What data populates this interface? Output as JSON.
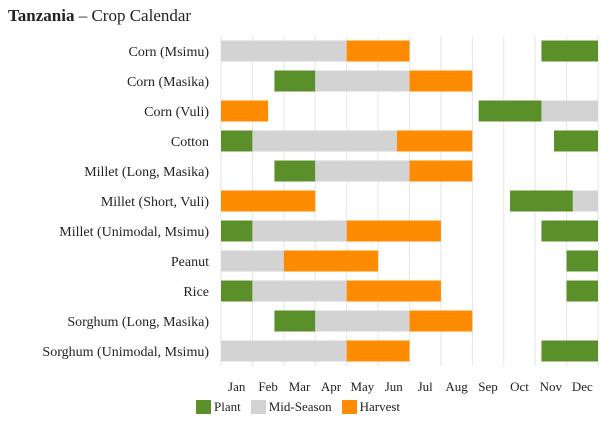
{
  "title": {
    "country": "Tanzania",
    "dash": "–",
    "subtitle": "Crop Calendar"
  },
  "colors": {
    "plant": "#5a8f29",
    "mid": "#d3d3d3",
    "harvest": "#ff8c00",
    "grid": "#e6e6e6"
  },
  "legend": [
    {
      "key": "plant",
      "label": "Plant"
    },
    {
      "key": "mid",
      "label": "Mid-Season"
    },
    {
      "key": "harvest",
      "label": "Harvest"
    }
  ],
  "chart_data": {
    "type": "bar",
    "title": "Tanzania – Crop Calendar",
    "x_unit": "months (Jan start = 0, Dec end = 12)",
    "months": [
      "Jan",
      "Feb",
      "Mar",
      "Apr",
      "May",
      "Jun",
      "Jul",
      "Aug",
      "Sep",
      "Oct",
      "Nov",
      "Dec"
    ],
    "xlim": [
      0,
      12
    ],
    "grid": true,
    "legend_position": "bottom-left",
    "crops": [
      {
        "name": "Corn (Msimu)",
        "segments": [
          {
            "type": "mid",
            "start": 0,
            "end": 4
          },
          {
            "type": "harvest",
            "start": 4,
            "end": 6
          },
          {
            "type": "plant",
            "start": 10.2,
            "end": 12
          }
        ]
      },
      {
        "name": "Corn (Masika)",
        "segments": [
          {
            "type": "plant",
            "start": 1.7,
            "end": 3
          },
          {
            "type": "mid",
            "start": 3,
            "end": 6
          },
          {
            "type": "harvest",
            "start": 6,
            "end": 8
          }
        ]
      },
      {
        "name": "Corn (Vuli)",
        "segments": [
          {
            "type": "harvest",
            "start": 0,
            "end": 1.5
          },
          {
            "type": "plant",
            "start": 8.2,
            "end": 10.2
          },
          {
            "type": "mid",
            "start": 10.2,
            "end": 12
          }
        ]
      },
      {
        "name": "Cotton",
        "segments": [
          {
            "type": "plant",
            "start": 0,
            "end": 1
          },
          {
            "type": "mid",
            "start": 1,
            "end": 5.6
          },
          {
            "type": "harvest",
            "start": 5.6,
            "end": 8
          },
          {
            "type": "plant",
            "start": 10.6,
            "end": 12
          }
        ]
      },
      {
        "name": "Millet (Long, Masika)",
        "segments": [
          {
            "type": "plant",
            "start": 1.7,
            "end": 3
          },
          {
            "type": "mid",
            "start": 3,
            "end": 6
          },
          {
            "type": "harvest",
            "start": 6,
            "end": 8
          }
        ]
      },
      {
        "name": "Millet (Short, Vuli)",
        "segments": [
          {
            "type": "harvest",
            "start": 0,
            "end": 3
          },
          {
            "type": "plant",
            "start": 9.2,
            "end": 11.2
          },
          {
            "type": "mid",
            "start": 11.2,
            "end": 12
          }
        ]
      },
      {
        "name": "Millet (Unimodal, Msimu)",
        "segments": [
          {
            "type": "plant",
            "start": 0,
            "end": 1
          },
          {
            "type": "mid",
            "start": 1,
            "end": 4
          },
          {
            "type": "harvest",
            "start": 4,
            "end": 7
          },
          {
            "type": "plant",
            "start": 10.2,
            "end": 12
          }
        ]
      },
      {
        "name": "Peanut",
        "segments": [
          {
            "type": "mid",
            "start": 0,
            "end": 2
          },
          {
            "type": "harvest",
            "start": 2,
            "end": 5
          },
          {
            "type": "plant",
            "start": 11,
            "end": 12
          }
        ]
      },
      {
        "name": "Rice",
        "segments": [
          {
            "type": "plant",
            "start": 0,
            "end": 1
          },
          {
            "type": "mid",
            "start": 1,
            "end": 4
          },
          {
            "type": "harvest",
            "start": 4,
            "end": 7
          },
          {
            "type": "plant",
            "start": 11,
            "end": 12
          }
        ]
      },
      {
        "name": "Sorghum (Long, Masika)",
        "segments": [
          {
            "type": "plant",
            "start": 1.7,
            "end": 3
          },
          {
            "type": "mid",
            "start": 3,
            "end": 6
          },
          {
            "type": "harvest",
            "start": 6,
            "end": 8
          }
        ]
      },
      {
        "name": "Sorghum (Unimodal, Msimu)",
        "segments": [
          {
            "type": "mid",
            "start": 0,
            "end": 4
          },
          {
            "type": "harvest",
            "start": 4,
            "end": 6
          },
          {
            "type": "plant",
            "start": 10.2,
            "end": 12
          }
        ]
      }
    ]
  }
}
